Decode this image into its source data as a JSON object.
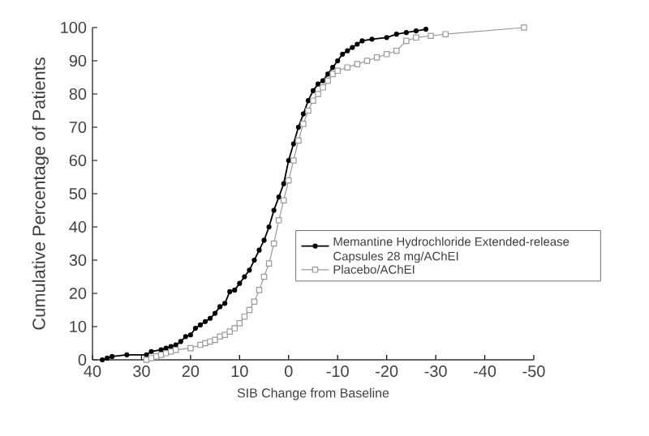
{
  "chart_data": {
    "type": "line",
    "xlabel": "SIB Change from Baseline",
    "ylabel": "Cumulative Percentage of Patients",
    "xlim": [
      40,
      -50
    ],
    "xticks": [
      40,
      30,
      20,
      10,
      0,
      -10,
      -20,
      -30,
      -40,
      -50
    ],
    "ylim": [
      0,
      100
    ],
    "yticks": [
      0,
      10,
      20,
      30,
      40,
      50,
      60,
      70,
      80,
      90,
      100
    ],
    "grid": false,
    "legend": "right",
    "line_style": "solid",
    "series": [
      {
        "name": "Memantine Hydrochloride Extended-release Capsules 28 mg/AChEI",
        "color": "#000000",
        "marker": "circle",
        "x": [
          38,
          37,
          36,
          33,
          29,
          28,
          26,
          25,
          24,
          23,
          22,
          21,
          20,
          19,
          18,
          17,
          16,
          15,
          14,
          13,
          12,
          11,
          10,
          9,
          8,
          7,
          6,
          5,
          4,
          3,
          2,
          1,
          0,
          -1,
          -2,
          -3,
          -4,
          -5,
          -6,
          -7,
          -8,
          -9,
          -10,
          -11,
          -12,
          -13,
          -14,
          -15,
          -17,
          -20,
          -22,
          -24,
          -26,
          -28
        ],
        "values": [
          0,
          0.5,
          1,
          1.5,
          1.5,
          2.5,
          3,
          3.5,
          4,
          4.5,
          5.5,
          7,
          7.5,
          9.5,
          10.5,
          11.5,
          12.5,
          14,
          16,
          17,
          20.5,
          21,
          23,
          25,
          27,
          30,
          33,
          36,
          40,
          45,
          49,
          53,
          60,
          65,
          70,
          74,
          78,
          81,
          83,
          84,
          86,
          88,
          90,
          92,
          93,
          94,
          95,
          96,
          96.5,
          97,
          98,
          98.5,
          99,
          99.5
        ]
      },
      {
        "name": "Placebo/AChEI",
        "color": "#999999",
        "marker": "square",
        "x": [
          29,
          28,
          27,
          26,
          25,
          24,
          23,
          20,
          18,
          17,
          16,
          15,
          14,
          13,
          12,
          11,
          10,
          9,
          8,
          7,
          6,
          5,
          4,
          3,
          2,
          1,
          0,
          -1,
          -2,
          -3,
          -4,
          -5,
          -6,
          -7,
          -8,
          -9,
          -10,
          -12,
          -14,
          -16,
          -18,
          -20,
          -22,
          -24,
          -26,
          -29,
          -32,
          -48
        ],
        "values": [
          0,
          0.5,
          1,
          1.5,
          2,
          2.5,
          3,
          3.5,
          4.5,
          5,
          5.5,
          6,
          7,
          7.5,
          8.5,
          9.5,
          11,
          13,
          15,
          17.5,
          21,
          25,
          29,
          35,
          42,
          48,
          54,
          60,
          66,
          71,
          75,
          78,
          80,
          82,
          84,
          86,
          87,
          88,
          89,
          90,
          91,
          92,
          93,
          96,
          97,
          97.5,
          98,
          100
        ]
      }
    ]
  }
}
